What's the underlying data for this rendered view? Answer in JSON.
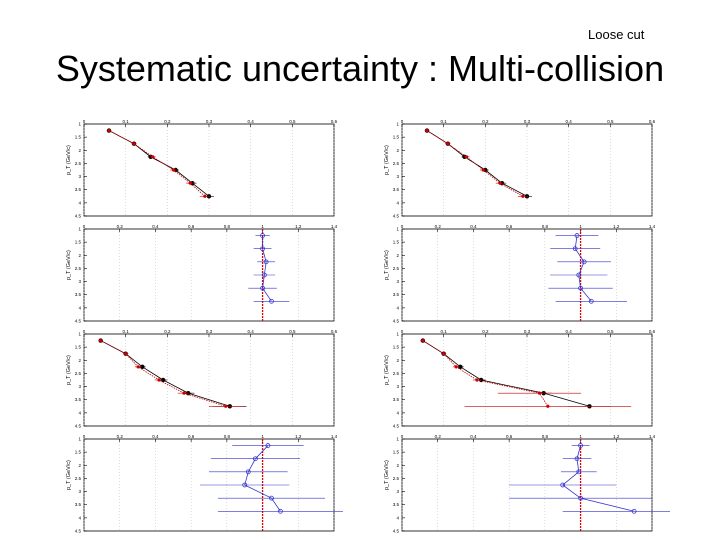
{
  "header": {
    "tag": "Loose cut",
    "title": "Systematic uncertainty : Multi-collision"
  },
  "colors": {
    "black_series": "#000000",
    "red_series": "#cc0000",
    "blue_series": "#3333cc",
    "guide": "#000000"
  },
  "chart_data": [
    {
      "type": "line",
      "panel": "left-1",
      "kind": "comparison",
      "xlabel": "p_T (GeV/c)",
      "xticks": [
        "1",
        "1.5",
        "2",
        "2.5",
        "3",
        "3.5",
        "4",
        "4.5"
      ],
      "xlim": [
        1,
        4.5
      ],
      "ylim": [
        0,
        0.6
      ],
      "yticks": [
        "0",
        "0.1",
        "0.2",
        "0.3",
        "0.4",
        "0.5",
        "0.6"
      ],
      "series": [
        {
          "color": "black",
          "x": [
            1.25,
            1.75,
            2.25,
            2.75,
            3.25,
            3.75
          ],
          "y": [
            0.06,
            0.12,
            0.16,
            0.22,
            0.26,
            0.3
          ],
          "err": [
            0.005,
            0.006,
            0.007,
            0.008,
            0.01,
            0.012
          ]
        },
        {
          "color": "red",
          "x": [
            1.25,
            1.75,
            2.25,
            2.75,
            3.25,
            3.75
          ],
          "y": [
            0.06,
            0.12,
            0.165,
            0.215,
            0.255,
            0.29
          ],
          "err": [
            0.005,
            0.006,
            0.007,
            0.008,
            0.01,
            0.012
          ]
        }
      ]
    },
    {
      "type": "line",
      "panel": "right-1",
      "kind": "comparison",
      "xlabel": "p_T (GeV/c)",
      "xticks": [
        "1",
        "1.5",
        "2",
        "2.5",
        "3",
        "3.5",
        "4",
        "4.5"
      ],
      "xlim": [
        1,
        4.5
      ],
      "ylim": [
        0,
        0.6
      ],
      "yticks": [
        "0",
        "0.1",
        "0.2",
        "0.3",
        "0.4",
        "0.5",
        "0.6"
      ],
      "series": [
        {
          "color": "black",
          "x": [
            1.25,
            1.75,
            2.25,
            2.75,
            3.25,
            3.75
          ],
          "y": [
            0.06,
            0.11,
            0.15,
            0.2,
            0.24,
            0.3
          ],
          "err": [
            0.005,
            0.006,
            0.007,
            0.008,
            0.01,
            0.012
          ]
        },
        {
          "color": "red",
          "x": [
            1.25,
            1.75,
            2.25,
            2.75,
            3.25,
            3.75
          ],
          "y": [
            0.06,
            0.11,
            0.155,
            0.195,
            0.235,
            0.29
          ],
          "err": [
            0.005,
            0.006,
            0.007,
            0.008,
            0.01,
            0.012
          ]
        }
      ]
    },
    {
      "type": "scatter",
      "panel": "left-2",
      "kind": "ratio",
      "xlabel": "p_T (GeV/c)",
      "xticks": [
        "1",
        "1.5",
        "2",
        "2.5",
        "3",
        "3.5",
        "4",
        "4.5"
      ],
      "xlim": [
        1,
        4.5
      ],
      "ylim": [
        0,
        1.4
      ],
      "yticks": [
        "0",
        "0.2",
        "0.4",
        "0.6",
        "0.8",
        "1",
        "1.2",
        "1.4"
      ],
      "reference": 1.0,
      "series": [
        {
          "color": "blue",
          "x": [
            1.25,
            1.75,
            2.25,
            2.75,
            3.25,
            3.75
          ],
          "y": [
            1.0,
            1.0,
            1.02,
            1.01,
            1.0,
            1.05
          ],
          "err": [
            0.04,
            0.05,
            0.05,
            0.06,
            0.08,
            0.1
          ]
        }
      ]
    },
    {
      "type": "scatter",
      "panel": "right-2",
      "kind": "ratio",
      "xlabel": "p_T (GeV/c)",
      "xticks": [
        "1",
        "1.5",
        "2",
        "2.5",
        "3",
        "3.5",
        "4",
        "4.5"
      ],
      "xlim": [
        1,
        4.5
      ],
      "ylim": [
        0,
        1.4
      ],
      "yticks": [
        "0",
        "0.2",
        "0.4",
        "0.6",
        "0.8",
        "1",
        "1.2",
        "1.4"
      ],
      "reference": 1.0,
      "series": [
        {
          "color": "blue",
          "x": [
            1.25,
            1.75,
            2.25,
            2.75,
            3.25,
            3.75
          ],
          "y": [
            0.98,
            0.97,
            1.02,
            0.99,
            1.0,
            1.06
          ],
          "err": [
            0.12,
            0.14,
            0.15,
            0.16,
            0.18,
            0.2
          ]
        }
      ]
    },
    {
      "type": "line",
      "panel": "left-3",
      "kind": "comparison",
      "xlabel": "p_T (GeV/c)",
      "xticks": [
        "1",
        "1.5",
        "2",
        "2.5",
        "3",
        "3.5",
        "4",
        "4.5"
      ],
      "xlim": [
        1,
        4.5
      ],
      "ylim": [
        0,
        0.6
      ],
      "yticks": [
        "0",
        "0.1",
        "0.2",
        "0.3",
        "0.4",
        "0.5",
        "0.6"
      ],
      "series": [
        {
          "color": "black",
          "x": [
            1.25,
            1.75,
            2.25,
            2.75,
            3.25,
            3.75
          ],
          "y": [
            0.04,
            0.1,
            0.14,
            0.19,
            0.25,
            0.35
          ],
          "err": [
            0.005,
            0.006,
            0.008,
            0.01,
            0.015,
            0.04
          ]
        },
        {
          "color": "red",
          "x": [
            1.25,
            1.75,
            2.25,
            2.75,
            3.25,
            3.75
          ],
          "y": [
            0.04,
            0.1,
            0.13,
            0.18,
            0.24,
            0.34
          ],
          "err": [
            0.005,
            0.006,
            0.008,
            0.01,
            0.015,
            0.04
          ]
        }
      ]
    },
    {
      "type": "line",
      "panel": "right-3",
      "kind": "comparison",
      "xlabel": "p_T (GeV/c)",
      "xticks": [
        "1",
        "1.5",
        "2",
        "2.5",
        "3",
        "3.5",
        "4",
        "4.5"
      ],
      "xlim": [
        1,
        4.5
      ],
      "ylim": [
        0,
        0.6
      ],
      "yticks": [
        "0",
        "0.1",
        "0.2",
        "0.3",
        "0.4",
        "0.5",
        "0.6"
      ],
      "series": [
        {
          "color": "black",
          "x": [
            1.25,
            1.75,
            2.25,
            2.75,
            3.25,
            3.75
          ],
          "y": [
            0.05,
            0.1,
            0.14,
            0.19,
            0.34,
            0.45
          ],
          "err": [
            0.005,
            0.006,
            0.008,
            0.01,
            0.02,
            0.05
          ]
        },
        {
          "color": "red",
          "x": [
            1.25,
            1.75,
            2.25,
            2.75,
            3.25,
            3.75
          ],
          "y": [
            0.05,
            0.1,
            0.13,
            0.18,
            0.33,
            0.35
          ],
          "err": [
            0.005,
            0.006,
            0.008,
            0.01,
            0.1,
            0.2
          ]
        }
      ]
    },
    {
      "type": "scatter",
      "panel": "left-4",
      "kind": "ratio",
      "xlabel": "p_T (GeV/c)",
      "xticks": [
        "1",
        "1.5",
        "2",
        "2.5",
        "3",
        "3.5",
        "4",
        "4.5"
      ],
      "xlim": [
        1,
        4.5
      ],
      "ylim": [
        0,
        1.4
      ],
      "yticks": [
        "0",
        "0.2",
        "0.4",
        "0.6",
        "0.8",
        "1",
        "1.2",
        "1.4"
      ],
      "reference": 1.0,
      "series": [
        {
          "color": "blue",
          "x": [
            1.25,
            1.75,
            2.25,
            2.75,
            3.25,
            3.75
          ],
          "y": [
            1.03,
            0.96,
            0.92,
            0.9,
            1.05,
            1.1
          ],
          "err": [
            0.2,
            0.25,
            0.22,
            0.25,
            0.3,
            0.35
          ]
        }
      ]
    },
    {
      "type": "scatter",
      "panel": "right-4",
      "kind": "ratio",
      "xlabel": "p_T (GeV/c)",
      "xticks": [
        "1",
        "1.5",
        "2",
        "2.5",
        "3",
        "3.5",
        "4",
        "4.5"
      ],
      "xlim": [
        1,
        4.5
      ],
      "ylim": [
        0,
        1.4
      ],
      "yticks": [
        "0",
        "0.2",
        "0.4",
        "0.6",
        "0.8",
        "1",
        "1.2",
        "1.4"
      ],
      "reference": 1.0,
      "series": [
        {
          "color": "blue",
          "x": [
            1.25,
            1.75,
            2.25,
            2.75,
            3.25,
            3.75
          ],
          "y": [
            1.0,
            0.98,
            0.99,
            0.9,
            1.0,
            1.3
          ],
          "err": [
            0.05,
            0.08,
            0.1,
            0.3,
            0.4,
            0.4
          ]
        }
      ]
    }
  ]
}
